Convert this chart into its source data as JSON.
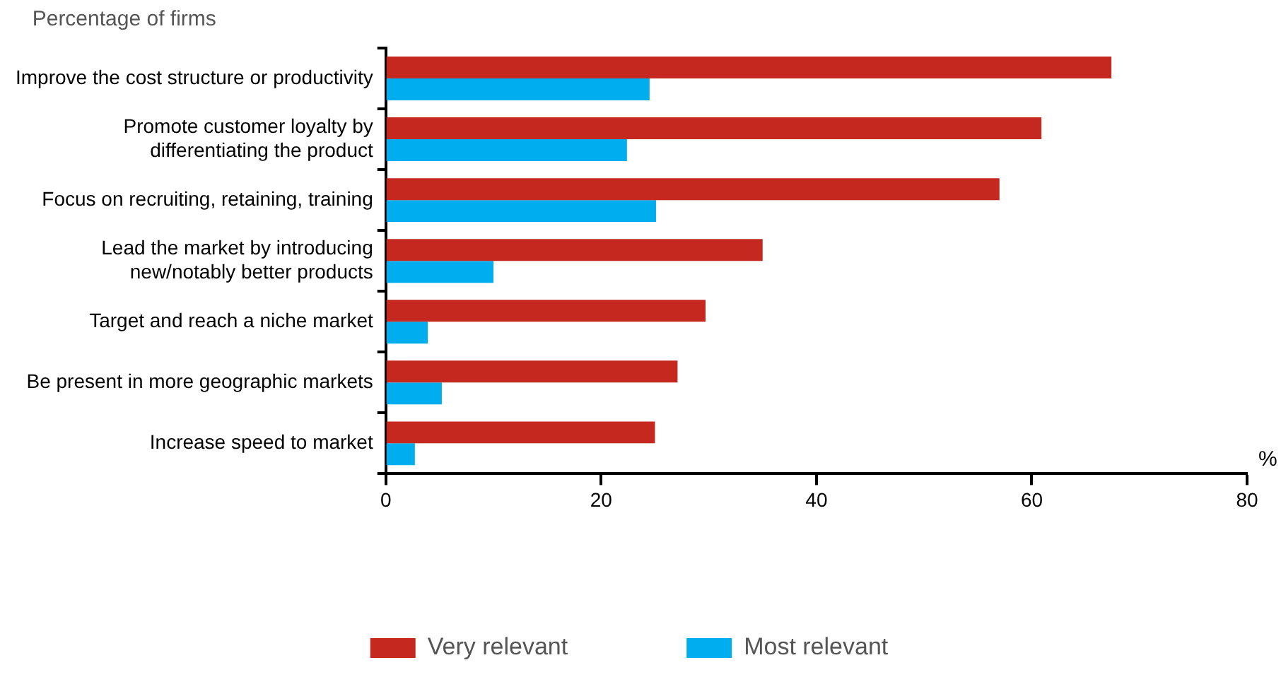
{
  "chart_data": {
    "type": "bar",
    "orientation": "horizontal",
    "ylabel": "Percentage of firms",
    "xlabel": "%",
    "categories": [
      "Improve the cost structure or productivity",
      "Promote customer loyalty by differentiating the product",
      "Focus on recruiting, retaining, training",
      "Lead the market by introducing new/notably better products",
      "Target and reach a niche market",
      "Be present in more geographic markets",
      "Increase speed to market"
    ],
    "series": [
      {
        "name": "Very relevant",
        "color": "#c4281f",
        "values": [
          67.4,
          60.9,
          57.0,
          35.0,
          29.7,
          27.1,
          25.0
        ]
      },
      {
        "name": "Most relevant",
        "color": "#00aeef",
        "values": [
          24.5,
          22.4,
          25.1,
          10.0,
          3.9,
          5.2,
          2.7
        ]
      }
    ],
    "xlim": [
      0,
      80
    ],
    "xticks": [
      0,
      20,
      40,
      60,
      80
    ],
    "grid": false,
    "legend": "bottom"
  }
}
